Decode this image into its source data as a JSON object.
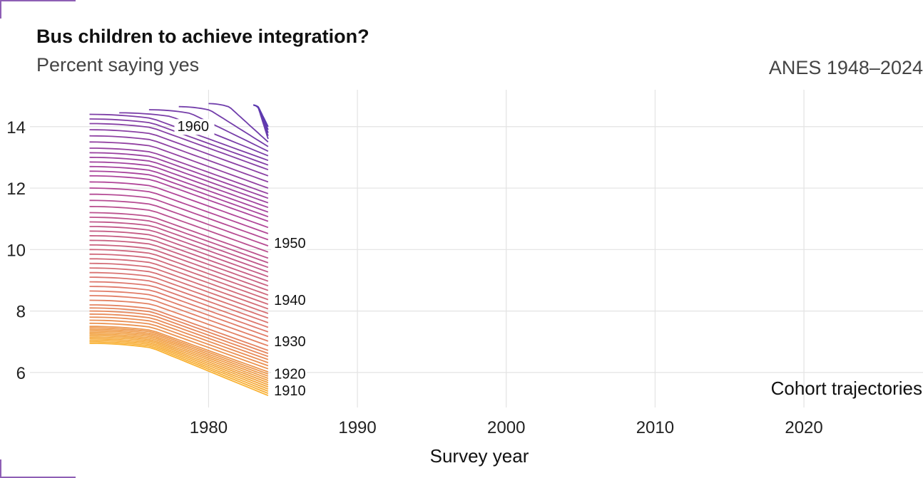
{
  "chart_data": {
    "type": "line",
    "title": "Bus children to achieve integration?",
    "subtitle": "Percent saying yes",
    "source": "ANES 1948–2024",
    "xlabel": "Survey year",
    "ylabel": "",
    "xlim": [
      1968,
      2028
    ],
    "ylim": [
      5.0,
      15.2
    ],
    "x_ticks": [
      1980,
      1990,
      2000,
      2010,
      2020
    ],
    "y_ticks": [
      6,
      8,
      10,
      12,
      14
    ],
    "grid": true,
    "annotation": "Cohort trajectories",
    "cohort_labels": [
      {
        "text": "1960",
        "x": 1977.8,
        "y": 13.85
      },
      {
        "text": "1950",
        "x": 1984.3,
        "y": 10.05
      },
      {
        "text": "1940",
        "x": 1984.3,
        "y": 8.2
      },
      {
        "text": "1930",
        "x": 1984.3,
        "y": 6.85
      },
      {
        "text": "1920",
        "x": 1984.3,
        "y": 5.8
      },
      {
        "text": "1910",
        "x": 1984.3,
        "y": 5.25
      }
    ],
    "series_start_cohort": 1900,
    "series_end_cohort": 1965,
    "series_x_end": 1984,
    "series_y_start": [
      6.95,
      7.0,
      7.05,
      7.1,
      7.15,
      7.2,
      7.25,
      7.3,
      7.35,
      7.4,
      7.45,
      7.5,
      7.6,
      7.7,
      7.8,
      7.9,
      8.0,
      8.1,
      8.2,
      8.35,
      8.5,
      8.65,
      8.8,
      8.95,
      9.1,
      9.25,
      9.4,
      9.55,
      9.7,
      9.85,
      10.0,
      10.15,
      10.3,
      10.45,
      10.6,
      10.75,
      10.9,
      11.05,
      11.2,
      11.4,
      11.6,
      11.8,
      12.0,
      12.2,
      12.4,
      12.55,
      12.7,
      12.85,
      13.0,
      13.15,
      13.3,
      13.5,
      13.7,
      13.9,
      14.1,
      14.25,
      14.4,
      14.45,
      14.55,
      14.65,
      14.75,
      14.7,
      14.7,
      14.7,
      14.7,
      14.7
    ],
    "series_y_end": [
      5.25,
      5.32,
      5.39,
      5.46,
      5.53,
      5.6,
      5.67,
      5.74,
      5.81,
      5.88,
      5.95,
      6.02,
      6.12,
      6.22,
      6.32,
      6.42,
      6.52,
      6.62,
      6.72,
      6.87,
      7.02,
      7.17,
      7.32,
      7.47,
      7.62,
      7.77,
      7.92,
      8.07,
      8.22,
      8.37,
      8.52,
      8.67,
      8.82,
      8.97,
      9.12,
      9.27,
      9.42,
      9.57,
      9.72,
      9.92,
      10.12,
      10.32,
      10.52,
      10.72,
      10.92,
      11.07,
      11.22,
      11.37,
      11.52,
      11.67,
      11.82,
      12.0,
      12.2,
      12.4,
      12.6,
      12.75,
      12.9,
      13.05,
      13.2,
      13.35,
      13.5,
      13.6,
      13.7,
      13.8,
      13.9,
      14.0
    ],
    "series_x_start": [
      1972,
      1972,
      1972,
      1972,
      1972,
      1972,
      1972,
      1972,
      1972,
      1972,
      1972,
      1972,
      1972,
      1972,
      1972,
      1972,
      1972,
      1972,
      1972,
      1972,
      1972,
      1972,
      1972,
      1972,
      1972,
      1972,
      1972,
      1972,
      1972,
      1972,
      1972,
      1972,
      1972,
      1972,
      1972,
      1972,
      1972,
      1972,
      1972,
      1972,
      1972,
      1972,
      1972,
      1972,
      1972,
      1972,
      1972,
      1972,
      1972,
      1972,
      1972,
      1972,
      1972,
      1972,
      1972,
      1972,
      1972,
      1974,
      1976,
      1978,
      1980,
      1983,
      1983,
      1983,
      1983,
      1983
    ],
    "colors": {
      "oldest": "#f9b233",
      "mid": "#e07a6a",
      "young": "#b0459a",
      "youngest": "#5b3ab0",
      "grid": "#e3e3e3",
      "corner": "#8e5fb5"
    }
  }
}
